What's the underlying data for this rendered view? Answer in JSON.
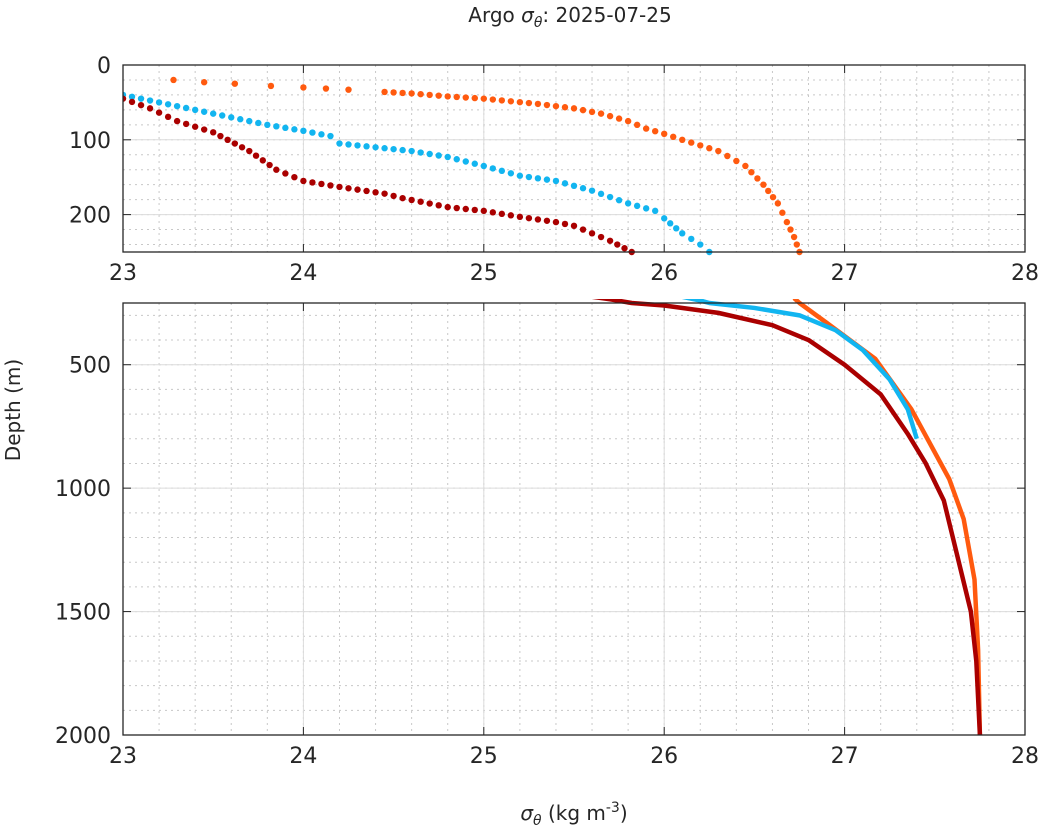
{
  "chart_data": {
    "type": "scatter",
    "title_prefix": "Argo ",
    "title_symbol": "σ",
    "title_sub": "θ",
    "title_suffix": ": 2025-07-25",
    "xlabel_symbol": "σ",
    "xlabel_sub": "θ",
    "xlabel_units": " (kg m",
    "xlabel_exp": "-3",
    "xlabel_close": ")",
    "ylabel": "Depth (m)",
    "grid": true,
    "panels": [
      {
        "name": "upper",
        "xlim": [
          23,
          28
        ],
        "ylim": [
          0,
          250
        ],
        "xticks": [
          "23",
          "24",
          "25",
          "26",
          "27",
          "28"
        ],
        "xtick_values": [
          23,
          24,
          25,
          26,
          27,
          28
        ],
        "yticks": [
          "0",
          "100",
          "200"
        ],
        "ytick_values": [
          0,
          100,
          200
        ],
        "style": "markers"
      },
      {
        "name": "lower",
        "xlim": [
          23,
          28
        ],
        "ylim": [
          250,
          2000
        ],
        "xticks": [
          "23",
          "24",
          "25",
          "26",
          "27",
          "28"
        ],
        "xtick_values": [
          23,
          24,
          25,
          26,
          27,
          28
        ],
        "yticks": [
          "500",
          "1000",
          "1500",
          "2000"
        ],
        "ytick_values": [
          500,
          1000,
          1500,
          2000
        ],
        "style": "line"
      }
    ],
    "series": [
      {
        "name": "profile-orange",
        "color": "#FF5A0F",
        "points": [
          [
            23.28,
            20
          ],
          [
            23.45,
            23
          ],
          [
            23.62,
            25
          ],
          [
            23.82,
            28
          ],
          [
            24.0,
            30
          ],
          [
            24.25,
            33
          ],
          [
            24.45,
            36
          ],
          [
            24.6,
            38
          ],
          [
            24.8,
            42
          ],
          [
            25.0,
            45
          ],
          [
            25.3,
            52
          ],
          [
            25.5,
            58
          ],
          [
            25.65,
            65
          ],
          [
            25.8,
            75
          ],
          [
            25.9,
            85
          ],
          [
            26.0,
            92
          ],
          [
            26.1,
            100
          ],
          [
            26.3,
            115
          ],
          [
            26.45,
            135
          ],
          [
            26.55,
            160
          ],
          [
            26.63,
            185
          ],
          [
            26.68,
            210
          ],
          [
            26.72,
            230
          ],
          [
            26.75,
            250
          ],
          [
            26.9,
            330
          ],
          [
            27.17,
            476
          ],
          [
            27.37,
            680
          ],
          [
            27.58,
            963
          ],
          [
            27.66,
            1125
          ],
          [
            27.72,
            1370
          ],
          [
            27.74,
            1655
          ],
          [
            27.75,
            2000
          ]
        ]
      },
      {
        "name": "profile-blue",
        "color": "#12B5F0",
        "points": [
          [
            23.0,
            40
          ],
          [
            23.2,
            50
          ],
          [
            23.4,
            60
          ],
          [
            23.6,
            70
          ],
          [
            23.8,
            80
          ],
          [
            24.0,
            88
          ],
          [
            24.15,
            95
          ],
          [
            24.2,
            105
          ],
          [
            24.4,
            110
          ],
          [
            24.6,
            115
          ],
          [
            24.8,
            123
          ],
          [
            25.0,
            135
          ],
          [
            25.2,
            148
          ],
          [
            25.4,
            155
          ],
          [
            25.6,
            168
          ],
          [
            25.8,
            185
          ],
          [
            25.95,
            195
          ],
          [
            26.0,
            205
          ],
          [
            26.1,
            225
          ],
          [
            26.2,
            240
          ],
          [
            26.25,
            250
          ],
          [
            26.5,
            270
          ],
          [
            26.75,
            300
          ],
          [
            26.95,
            360
          ],
          [
            27.1,
            440
          ],
          [
            27.25,
            560
          ],
          [
            27.35,
            680
          ],
          [
            27.4,
            800
          ]
        ]
      },
      {
        "name": "profile-darkred",
        "color": "#AA0000",
        "points": [
          [
            23.0,
            45
          ],
          [
            23.15,
            58
          ],
          [
            23.3,
            75
          ],
          [
            23.5,
            90
          ],
          [
            23.7,
            115
          ],
          [
            23.85,
            140
          ],
          [
            24.0,
            155
          ],
          [
            24.2,
            163
          ],
          [
            24.45,
            172
          ],
          [
            24.55,
            178
          ],
          [
            24.8,
            190
          ],
          [
            25.0,
            195
          ],
          [
            25.2,
            203
          ],
          [
            25.4,
            210
          ],
          [
            25.5,
            215
          ],
          [
            25.6,
            225
          ],
          [
            25.7,
            235
          ],
          [
            25.82,
            250
          ],
          [
            26.0,
            260
          ],
          [
            26.3,
            290
          ],
          [
            26.6,
            340
          ],
          [
            26.8,
            400
          ],
          [
            27.0,
            500
          ],
          [
            27.2,
            620
          ],
          [
            27.35,
            780
          ],
          [
            27.45,
            900
          ],
          [
            27.55,
            1050
          ],
          [
            27.6,
            1200
          ],
          [
            27.65,
            1350
          ],
          [
            27.7,
            1500
          ],
          [
            27.73,
            1700
          ],
          [
            27.75,
            2000
          ]
        ]
      }
    ]
  }
}
